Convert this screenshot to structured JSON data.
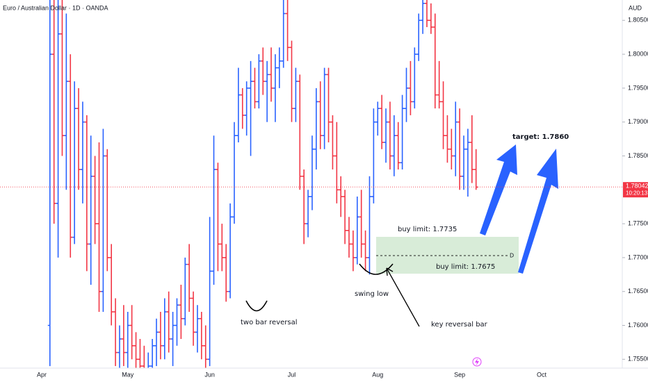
{
  "chart_data": {
    "type": "ohlc",
    "title": "Euro / Australian Dollar · 1D · OANDA",
    "y_axis_label": "AUD",
    "categories": [
      "Apr",
      null,
      null,
      null,
      null,
      null,
      null,
      null,
      null,
      null,
      null,
      null,
      null,
      null,
      null,
      null,
      null,
      null,
      null,
      null,
      null,
      "May",
      null,
      null,
      null,
      null,
      null,
      null,
      null,
      null,
      null,
      null,
      null,
      null,
      null,
      null,
      null,
      null,
      null,
      null,
      null,
      "Jun",
      null,
      null,
      null,
      null,
      null,
      null,
      null,
      null,
      null,
      null,
      null,
      null,
      null,
      null,
      null,
      null,
      null,
      null,
      null,
      "Jul",
      null,
      null,
      null,
      null,
      null,
      null,
      null,
      null,
      null,
      null,
      null,
      null,
      null,
      null,
      null,
      null,
      null,
      null,
      null,
      null,
      "Aug",
      null,
      null,
      null,
      null,
      null,
      null,
      null,
      null,
      null,
      null,
      null,
      null,
      null,
      null,
      null,
      null,
      null,
      null,
      null,
      "Sep",
      null,
      null,
      null,
      null,
      null,
      null,
      null,
      null,
      null,
      null,
      null,
      null,
      null,
      null,
      null,
      null,
      null,
      null,
      null,
      "Oct"
    ],
    "open": [
      null,
      null,
      1.76,
      1.8,
      1.778,
      1.803,
      1.788,
      1.796,
      1.773,
      1.792,
      1.783,
      1.79,
      1.772,
      1.782,
      1.775,
      1.765,
      1.785,
      1.77,
      1.762,
      1.756,
      1.758,
      1.756,
      1.76,
      1.757,
      1.755,
      1.754,
      1.753,
      1.754,
      1.757,
      1.759,
      1.757,
      1.762,
      1.758,
      1.76,
      1.763,
      1.761,
      1.769,
      1.764,
      1.759,
      1.761,
      1.757,
      1.755,
      1.768,
      1.783,
      1.772,
      1.77,
      1.765,
      1.776,
      1.788,
      1.794,
      1.791,
      1.795,
      1.796,
      1.793,
      1.799,
      1.796,
      1.797,
      1.795,
      1.798,
      1.799,
      1.806,
      1.801,
      1.792,
      1.796,
      1.782,
      1.775,
      1.779,
      1.786,
      1.793,
      1.788,
      1.797,
      1.79,
      1.785,
      1.78,
      1.779,
      1.774,
      1.772,
      1.77,
      1.776,
      1.772,
      1.77,
      1.779,
      1.79,
      1.792,
      1.787,
      1.79,
      1.785,
      1.788,
      1.784,
      1.792,
      1.795,
      1.793,
      1.8,
      1.805,
      1.8075,
      1.805,
      1.804,
      1.794,
      1.793,
      1.788,
      1.786,
      1.785,
      1.79,
      1.782,
      1.786,
      1.787,
      1.783,
      null,
      null,
      null,
      null,
      null,
      null,
      null,
      null,
      null,
      null,
      null,
      null,
      null,
      null,
      null,
      null
    ],
    "high": [
      null,
      null,
      1.808,
      1.808,
      1.808,
      1.808,
      1.806,
      1.8,
      1.796,
      1.795,
      1.793,
      1.791,
      1.788,
      1.785,
      1.787,
      1.789,
      1.786,
      1.772,
      1.764,
      1.76,
      1.763,
      1.762,
      1.763,
      1.759,
      1.758,
      1.757,
      1.756,
      1.758,
      1.761,
      1.762,
      1.764,
      1.765,
      1.762,
      1.764,
      1.766,
      1.77,
      1.772,
      1.765,
      1.763,
      1.762,
      1.76,
      1.776,
      1.788,
      1.784,
      1.775,
      1.772,
      1.778,
      1.79,
      1.798,
      1.795,
      1.796,
      1.799,
      1.798,
      1.8,
      1.801,
      1.799,
      1.801,
      1.8,
      1.801,
      1.808,
      1.808,
      1.802,
      1.798,
      1.797,
      1.783,
      1.78,
      1.788,
      1.795,
      1.796,
      1.798,
      1.798,
      1.791,
      1.79,
      1.782,
      1.78,
      1.776,
      1.774,
      1.779,
      1.78,
      1.774,
      1.782,
      1.792,
      1.793,
      1.794,
      1.792,
      1.793,
      1.791,
      1.79,
      1.794,
      1.798,
      1.799,
      1.801,
      1.806,
      1.808,
      1.808,
      1.8075,
      1.806,
      1.799,
      1.796,
      1.791,
      1.789,
      1.793,
      1.792,
      1.788,
      1.789,
      1.791,
      1.786,
      null,
      null,
      null,
      null,
      null,
      null,
      null,
      null,
      null,
      null,
      null,
      null,
      null,
      null,
      null,
      null
    ],
    "low": [
      null,
      null,
      1.754,
      1.775,
      1.77,
      1.785,
      1.78,
      1.77,
      1.772,
      1.78,
      1.778,
      1.768,
      1.766,
      1.772,
      1.762,
      1.762,
      1.768,
      1.76,
      1.754,
      1.753,
      1.754,
      1.753,
      1.755,
      1.753,
      1.752,
      1.751,
      1.75,
      1.751,
      1.754,
      1.755,
      1.755,
      1.756,
      1.754,
      1.757,
      1.758,
      1.76,
      1.762,
      1.757,
      1.756,
      1.755,
      1.753,
      1.754,
      1.766,
      1.768,
      1.768,
      1.7635,
      1.764,
      1.775,
      1.787,
      1.789,
      1.788,
      1.785,
      1.792,
      1.792,
      1.794,
      1.79,
      1.793,
      1.79,
      1.795,
      1.798,
      1.799,
      1.79,
      1.79,
      1.78,
      1.772,
      1.773,
      1.777,
      1.783,
      1.786,
      1.786,
      1.787,
      1.783,
      1.778,
      1.776,
      1.772,
      1.77,
      1.768,
      1.769,
      1.77,
      1.768,
      1.7675,
      1.778,
      1.788,
      1.786,
      1.784,
      1.783,
      1.782,
      1.783,
      1.783,
      1.79,
      1.791,
      1.792,
      1.799,
      1.803,
      1.804,
      1.803,
      1.792,
      1.792,
      1.786,
      1.784,
      1.783,
      1.782,
      1.78,
      1.78,
      1.779,
      1.781,
      1.78,
      null,
      null,
      null,
      null,
      null,
      null,
      null,
      null,
      null,
      null,
      null,
      null,
      null,
      null,
      null,
      null
    ],
    "close": [
      null,
      null,
      1.8,
      1.778,
      1.803,
      1.788,
      1.796,
      1.773,
      1.792,
      1.783,
      1.79,
      1.772,
      1.782,
      1.775,
      1.765,
      1.785,
      1.77,
      1.762,
      1.756,
      1.758,
      1.756,
      1.76,
      1.757,
      1.755,
      1.754,
      1.753,
      1.754,
      1.757,
      1.759,
      1.757,
      1.762,
      1.758,
      1.76,
      1.763,
      1.761,
      1.769,
      1.764,
      1.759,
      1.761,
      1.757,
      1.755,
      1.768,
      1.783,
      1.772,
      1.77,
      1.765,
      1.776,
      1.788,
      1.794,
      1.791,
      1.795,
      1.796,
      1.793,
      1.799,
      1.796,
      1.797,
      1.795,
      1.798,
      1.799,
      1.806,
      1.801,
      1.792,
      1.796,
      1.782,
      1.775,
      1.779,
      1.786,
      1.793,
      1.788,
      1.797,
      1.79,
      1.785,
      1.78,
      1.779,
      1.774,
      1.772,
      1.77,
      1.776,
      1.772,
      1.77,
      1.779,
      1.79,
      1.792,
      1.787,
      1.79,
      1.785,
      1.788,
      1.784,
      1.792,
      1.795,
      1.793,
      1.8,
      1.805,
      1.8075,
      1.805,
      1.804,
      1.794,
      1.793,
      1.788,
      1.786,
      1.785,
      1.79,
      1.782,
      1.786,
      1.787,
      1.783,
      1.7804,
      null,
      null,
      null,
      null,
      null,
      null,
      null,
      null,
      null,
      null,
      null,
      null,
      null,
      null,
      null,
      null
    ],
    "up_color": "#2962ff",
    "down_color": "#f23645",
    "ylim": [
      1.7537,
      1.808
    ],
    "yticks": [
      {
        "value": 1.805,
        "label": "1.80500"
      },
      {
        "value": 1.8,
        "label": "1.80000"
      },
      {
        "value": 1.795,
        "label": "1.79500"
      },
      {
        "value": 1.79,
        "label": "1.79000"
      },
      {
        "value": 1.785,
        "label": "1.78500"
      },
      {
        "value": 1.775,
        "label": "1.77500"
      },
      {
        "value": 1.77,
        "label": "1.77000"
      },
      {
        "value": 1.765,
        "label": "1.76500"
      },
      {
        "value": 1.76,
        "label": "1.76000"
      },
      {
        "value": 1.755,
        "label": "1.75500"
      }
    ],
    "last_price": 1.78042,
    "countdown": "10:20:13",
    "annotations": [
      "target: 1.7860",
      "buy limit: 1.7735",
      "buy limit: 1.7675",
      "D",
      "two bar reversal",
      "swing low",
      "key reversal bar"
    ]
  }
}
